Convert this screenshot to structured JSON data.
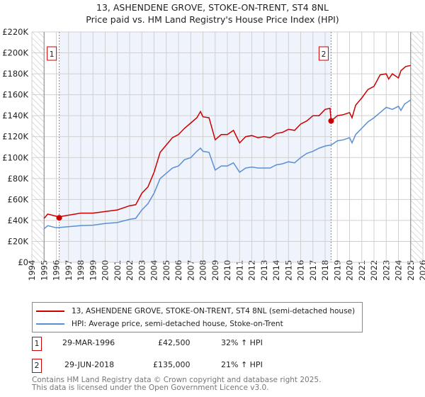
{
  "title_line1": "13, ASHENDENE GROVE, STOKE-ON-TRENT, ST4 8NL",
  "title_line2": "Price paid vs. HM Land Registry's House Price Index (HPI)",
  "chart_data": {
    "type": "line",
    "title": "13, ASHENDENE GROVE, STOKE-ON-TRENT, ST4 8NL — Price paid vs. HM Land Registry's House Price Index (HPI)",
    "xlim": [
      1994,
      2026
    ],
    "ylim": [
      0,
      220000
    ],
    "x_ticks": [
      "1994",
      "1995",
      "1996",
      "1997",
      "1998",
      "1999",
      "2000",
      "2001",
      "2002",
      "2003",
      "2004",
      "2005",
      "2006",
      "2007",
      "2008",
      "2009",
      "2010",
      "2011",
      "2012",
      "2013",
      "2014",
      "2015",
      "2016",
      "2017",
      "2018",
      "2019",
      "2020",
      "2021",
      "2022",
      "2023",
      "2024",
      "2025",
      "2026"
    ],
    "y_ticks": [
      {
        "v": 0,
        "label": "£0"
      },
      {
        "v": 20000,
        "label": "£20K"
      },
      {
        "v": 40000,
        "label": "£40K"
      },
      {
        "v": 60000,
        "label": "£60K"
      },
      {
        "v": 80000,
        "label": "£80K"
      },
      {
        "v": 100000,
        "label": "£100K"
      },
      {
        "v": 120000,
        "label": "£120K"
      },
      {
        "v": 140000,
        "label": "£140K"
      },
      {
        "v": 160000,
        "label": "£160K"
      },
      {
        "v": 180000,
        "label": "£180K"
      },
      {
        "v": 200000,
        "label": "£200K"
      },
      {
        "v": 220000,
        "label": "£220K"
      }
    ],
    "grid": true,
    "series": [
      {
        "name": "13, ASHENDENE GROVE, STOKE-ON-TRENT, ST4 8NL (semi-detached house)",
        "color": "#cc0000",
        "x": [
          1995,
          1995.3,
          1996,
          1996.24,
          1996.5,
          1997,
          1998,
          1999,
          2000,
          2001,
          2002,
          2002.5,
          2003,
          2003.5,
          2004,
          2004.5,
          2005,
          2005.5,
          2006,
          2006.5,
          2007,
          2007.5,
          2007.8,
          2008,
          2008.5,
          2009,
          2009.5,
          2010,
          2010.5,
          2011,
          2011.5,
          2012,
          2012.5,
          2013,
          2013.5,
          2014,
          2014.5,
          2015,
          2015.5,
          2016,
          2016.5,
          2017,
          2017.5,
          2018,
          2018.4,
          2018.49,
          2019,
          2019.5,
          2020,
          2020.2,
          2020.5,
          2021,
          2021.5,
          2022,
          2022.5,
          2023,
          2023.2,
          2023.5,
          2024,
          2024.2,
          2024.6,
          2025
        ],
        "y": [
          42000,
          46000,
          44000,
          42500,
          44000,
          45000,
          47000,
          47000,
          48500,
          50000,
          54000,
          55000,
          66000,
          72000,
          86000,
          105000,
          112000,
          119000,
          122000,
          128000,
          133000,
          138000,
          144000,
          139000,
          138000,
          117000,
          122000,
          122000,
          126000,
          114000,
          120000,
          121000,
          119000,
          120000,
          119000,
          123000,
          124000,
          127000,
          126000,
          132000,
          135000,
          140000,
          140000,
          146000,
          147000,
          135000,
          140000,
          141000,
          143000,
          138000,
          150000,
          157000,
          165000,
          168000,
          179000,
          180000,
          175000,
          180000,
          176000,
          183000,
          187000,
          188000
        ]
      },
      {
        "name": "HPI: Average price, semi-detached house, Stoke-on-Trent",
        "color": "#5b8fd4",
        "x": [
          1995,
          1995.3,
          1996,
          1997,
          1998,
          1999,
          2000,
          2001,
          2002,
          2002.5,
          2003,
          2003.5,
          2004,
          2004.5,
          2005,
          2005.5,
          2006,
          2006.5,
          2007,
          2007.5,
          2007.8,
          2008,
          2008.5,
          2009,
          2009.5,
          2010,
          2010.5,
          2011,
          2011.5,
          2012,
          2012.5,
          2013,
          2013.5,
          2014,
          2014.5,
          2015,
          2015.5,
          2016,
          2016.5,
          2017,
          2017.5,
          2018,
          2018.5,
          2019,
          2019.5,
          2020,
          2020.2,
          2020.5,
          2021,
          2021.5,
          2022,
          2022.5,
          2023,
          2023.5,
          2024,
          2024.2,
          2024.5,
          2025
        ],
        "y": [
          32000,
          35000,
          33000,
          34000,
          35000,
          35500,
          37000,
          38000,
          41000,
          42000,
          50000,
          56000,
          66000,
          80000,
          85000,
          90000,
          92000,
          98000,
          100000,
          106000,
          109000,
          106000,
          105000,
          88000,
          92000,
          92000,
          95000,
          86000,
          90000,
          91000,
          90000,
          90000,
          90000,
          93000,
          94000,
          96000,
          95000,
          100000,
          104000,
          106000,
          109000,
          111000,
          112000,
          116000,
          117000,
          119000,
          114000,
          122000,
          128000,
          134000,
          138000,
          143000,
          148000,
          146000,
          149000,
          145000,
          151000,
          155000
        ]
      }
    ],
    "sales": [
      {
        "id": "1",
        "x": 1996.24,
        "y": 42500
      },
      {
        "id": "2",
        "x": 2018.49,
        "y": 135000
      }
    ],
    "shaded_range": [
      1996.24,
      2018.49
    ],
    "hatched_before": 1995,
    "hatched_after": 2025,
    "legend_position": "below"
  },
  "legend": {
    "property": "13, ASHENDENE GROVE, STOKE-ON-TRENT, ST4 8NL (semi-detached house)",
    "hpi": "HPI: Average price, semi-detached house, Stoke-on-Trent"
  },
  "sales_table": [
    {
      "num": "1",
      "date": "29-MAR-1996",
      "price": "£42,500",
      "hpi": "32% ↑ HPI"
    },
    {
      "num": "2",
      "date": "29-JUN-2018",
      "price": "£135,000",
      "hpi": "21% ↑ HPI"
    }
  ],
  "footer_line1": "Contains HM Land Registry data © Crown copyright and database right 2025.",
  "footer_line2": "This data is licensed under the Open Government Licence v3.0."
}
